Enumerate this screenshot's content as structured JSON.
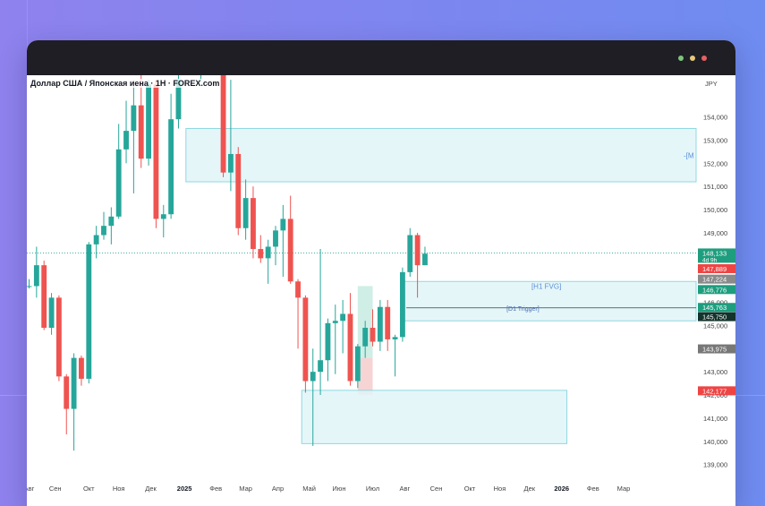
{
  "window": {
    "symbol_title": "Доллар США / Японская иена · 1Н · FOREX.com"
  },
  "colors": {
    "up": "#26a69a",
    "down": "#ef5350",
    "zone_fill": "#e0f5f8",
    "zone_border": "#8fd8e0",
    "zone_label": "#5b8fd6"
  },
  "chart_data": {
    "type": "candlestick",
    "currency": "JPY",
    "y_range": [
      138.6,
      155.8
    ],
    "y_ticks": [
      "154,000",
      "153,000",
      "152,000",
      "151,000",
      "150,000",
      "149,000",
      "148,000",
      "147,000",
      "146,000",
      "145,000",
      "144,000",
      "143,000",
      "142,000",
      "141,000",
      "140,000",
      "139,000"
    ],
    "y_tick_values": [
      154,
      153,
      152,
      151,
      150,
      149,
      148,
      147,
      146,
      145,
      144,
      143,
      142,
      141,
      140,
      139
    ],
    "x_labels": [
      "Авг",
      "Сен",
      "Окт",
      "Ноя",
      "Дек",
      "2025",
      "Фев",
      "Мар",
      "Апр",
      "Май",
      "Июн",
      "Июл",
      "Авг",
      "Сен",
      "Окт",
      "Ноя",
      "Дек",
      "2026",
      "Фев",
      "Мар"
    ],
    "x_label_bold": [
      "2025",
      "2026"
    ],
    "week_index_range": [
      -0.3,
      89.3
    ],
    "x_label_weeks": [
      0,
      3.5,
      8,
      12,
      16.3,
      20.8,
      25,
      29,
      33.3,
      37.5,
      41.5,
      46,
      50.3,
      54.5,
      59,
      63,
      67,
      71.3,
      75.5,
      79.6
    ],
    "current_price_line": 148.13,
    "candles": [
      {
        "w": 0,
        "o": 146.7,
        "h": 147.0,
        "l": 146.6,
        "c": 146.7
      },
      {
        "w": 1,
        "o": 146.7,
        "h": 148.4,
        "l": 146.2,
        "c": 147.6
      },
      {
        "w": 2,
        "o": 147.6,
        "h": 147.8,
        "l": 144.8,
        "c": 144.9
      },
      {
        "w": 3,
        "o": 144.9,
        "h": 146.4,
        "l": 144.6,
        "c": 146.2
      },
      {
        "w": 4,
        "o": 146.2,
        "h": 146.3,
        "l": 142.6,
        "c": 142.8
      },
      {
        "w": 5,
        "o": 142.8,
        "h": 142.9,
        "l": 140.3,
        "c": 141.4
      },
      {
        "w": 6,
        "o": 141.4,
        "h": 143.8,
        "l": 139.6,
        "c": 143.6
      },
      {
        "w": 7,
        "o": 143.6,
        "h": 143.7,
        "l": 142.4,
        "c": 142.7
      },
      {
        "w": 8,
        "o": 142.7,
        "h": 148.6,
        "l": 142.5,
        "c": 148.5
      },
      {
        "w": 9,
        "o": 148.5,
        "h": 149.3,
        "l": 147.9,
        "c": 148.9
      },
      {
        "w": 10,
        "o": 148.9,
        "h": 149.9,
        "l": 148.7,
        "c": 149.3
      },
      {
        "w": 11,
        "o": 149.3,
        "h": 150.1,
        "l": 148.5,
        "c": 149.7
      },
      {
        "w": 12,
        "o": 149.7,
        "h": 153.7,
        "l": 149.6,
        "c": 152.6
      },
      {
        "w": 13,
        "o": 152.6,
        "h": 154.7,
        "l": 152.0,
        "c": 153.4
      },
      {
        "w": 14,
        "o": 153.4,
        "h": 155.6,
        "l": 150.7,
        "c": 154.5
      },
      {
        "w": 15,
        "o": 154.5,
        "h": 155.8,
        "l": 151.8,
        "c": 152.2
      },
      {
        "w": 16,
        "o": 152.2,
        "h": 155.6,
        "l": 151.9,
        "c": 155.4
      },
      {
        "w": 17,
        "o": 155.4,
        "h": 155.6,
        "l": 149.2,
        "c": 149.6
      },
      {
        "w": 18,
        "o": 149.6,
        "h": 150.2,
        "l": 148.8,
        "c": 149.8
      },
      {
        "w": 19,
        "o": 149.8,
        "h": 155.0,
        "l": 149.6,
        "c": 153.9
      },
      {
        "w": 20,
        "o": 153.9,
        "h": 155.8,
        "l": 153.5,
        "c": 155.6
      },
      {
        "w": 23,
        "o": 156.0,
        "h": 156.4,
        "l": 155.5,
        "c": 156.3
      },
      {
        "w": 26,
        "o": 156.3,
        "h": 156.6,
        "l": 151.4,
        "c": 151.6
      },
      {
        "w": 27,
        "o": 151.6,
        "h": 155.6,
        "l": 150.8,
        "c": 152.4
      },
      {
        "w": 28,
        "o": 152.4,
        "h": 152.7,
        "l": 148.9,
        "c": 149.2
      },
      {
        "w": 29,
        "o": 149.2,
        "h": 151.3,
        "l": 148.7,
        "c": 150.5
      },
      {
        "w": 30,
        "o": 150.5,
        "h": 151.0,
        "l": 147.9,
        "c": 148.3
      },
      {
        "w": 31,
        "o": 148.3,
        "h": 148.9,
        "l": 147.7,
        "c": 147.9
      },
      {
        "w": 32,
        "o": 147.9,
        "h": 148.7,
        "l": 146.8,
        "c": 148.4
      },
      {
        "w": 33,
        "o": 148.4,
        "h": 149.3,
        "l": 147.6,
        "c": 149.1
      },
      {
        "w": 34,
        "o": 149.1,
        "h": 150.2,
        "l": 147.1,
        "c": 149.6
      },
      {
        "w": 35,
        "o": 149.6,
        "h": 150.6,
        "l": 146.8,
        "c": 146.9
      },
      {
        "w": 36,
        "o": 146.9,
        "h": 147.0,
        "l": 144.0,
        "c": 146.2
      },
      {
        "w": 37,
        "o": 146.2,
        "h": 146.3,
        "l": 142.1,
        "c": 142.6
      },
      {
        "w": 38,
        "o": 142.6,
        "h": 144.0,
        "l": 139.8,
        "c": 143.0
      },
      {
        "w": 39,
        "o": 143.0,
        "h": 148.3,
        "l": 142.0,
        "c": 143.5
      },
      {
        "w": 40,
        "o": 143.5,
        "h": 145.3,
        "l": 142.6,
        "c": 145.1
      },
      {
        "w": 41,
        "o": 145.1,
        "h": 145.9,
        "l": 142.9,
        "c": 145.2
      },
      {
        "w": 42,
        "o": 145.2,
        "h": 146.1,
        "l": 143.8,
        "c": 145.5
      },
      {
        "w": 43,
        "o": 145.5,
        "h": 146.4,
        "l": 142.4,
        "c": 142.6
      },
      {
        "w": 44,
        "o": 142.6,
        "h": 144.2,
        "l": 142.3,
        "c": 144.1
      },
      {
        "w": 45,
        "o": 144.1,
        "h": 145.2,
        "l": 143.6,
        "c": 144.9
      },
      {
        "w": 46,
        "o": 144.9,
        "h": 145.7,
        "l": 144.1,
        "c": 144.3
      },
      {
        "w": 47,
        "o": 144.3,
        "h": 146.1,
        "l": 143.9,
        "c": 145.8
      },
      {
        "w": 48,
        "o": 145.8,
        "h": 146.1,
        "l": 143.9,
        "c": 144.4
      },
      {
        "w": 49,
        "o": 144.4,
        "h": 144.6,
        "l": 142.8,
        "c": 144.5
      },
      {
        "w": 50,
        "o": 144.5,
        "h": 147.5,
        "l": 144.3,
        "c": 147.3
      },
      {
        "w": 51,
        "o": 147.3,
        "h": 149.2,
        "l": 147.1,
        "c": 148.9
      },
      {
        "w": 52,
        "o": 148.9,
        "h": 149.0,
        "l": 146.2,
        "c": 147.6
      },
      {
        "w": 53,
        "o": 147.6,
        "h": 148.4,
        "l": 147.6,
        "c": 148.1
      }
    ],
    "zones": [
      {
        "name": "zone-upper",
        "label": "-[M",
        "y_top": 153.5,
        "y_bottom": 151.2,
        "w_start": 21.0,
        "w_end": 89.3
      },
      {
        "name": "zone-h1-fvg",
        "label": "[H1 FVG]",
        "y_top": 146.9,
        "y_bottom": 145.2,
        "w_start": 50.0,
        "w_end": 89.3
      },
      {
        "name": "zone-lower",
        "label": "",
        "y_top": 142.2,
        "y_bottom": 139.9,
        "w_start": 36.5,
        "w_end": 72.0
      }
    ],
    "trigger_line": {
      "label": "[D1 Trigger]",
      "y": 145.76,
      "w_start": 50.5,
      "w_end": 89.3
    },
    "highlight_boxes": [
      {
        "name": "highlight-green",
        "y_top": 146.7,
        "y_bottom": 143.6,
        "w_start": 44.0,
        "w_end": 46.0,
        "color": "#cfeee6"
      },
      {
        "name": "highlight-red",
        "y_top": 143.6,
        "y_bottom": 142.0,
        "w_start": 44.0,
        "w_end": 46.0,
        "color": "#f6d4d4"
      }
    ],
    "price_tags": [
      {
        "value": "148,133",
        "sub": "4d 9h",
        "y": 148.13,
        "color": "#1e9e7e"
      },
      {
        "value": "147,889",
        "y": 147.45,
        "color": "#ef4444"
      },
      {
        "value": "147,224",
        "y": 147.0,
        "color": "#8a8a8a"
      },
      {
        "value": "146,776",
        "y": 146.55,
        "color": "#1e9e7e"
      },
      {
        "value": "145,763",
        "y": 145.78,
        "color": "#1e9e7e"
      },
      {
        "value": "145,750",
        "y": 145.38,
        "color": "#14332c"
      },
      {
        "value": "143,975",
        "y": 143.99,
        "color": "#777777"
      },
      {
        "value": "142,177",
        "y": 142.18,
        "color": "#ef4444"
      }
    ]
  }
}
